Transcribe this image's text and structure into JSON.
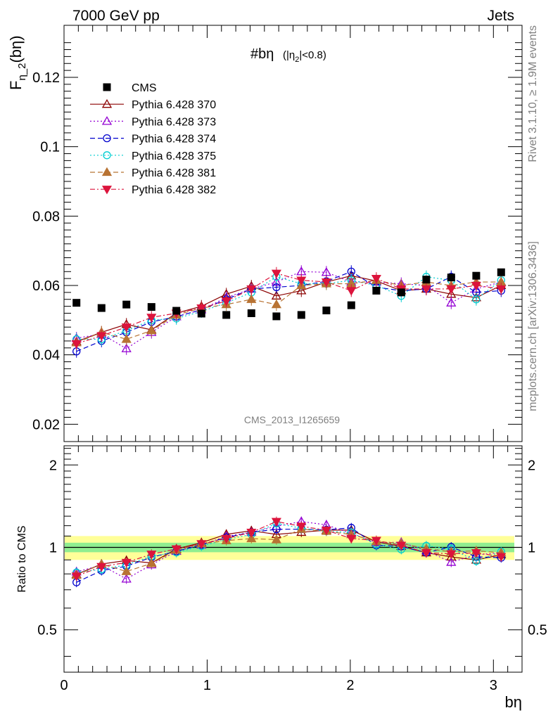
{
  "header": {
    "left": "7000 GeV pp",
    "right": "Jets"
  },
  "side_labels": {
    "rivet": "Rivet 3.1.10, ≥ 1.9M events",
    "mcplots": "mcplots.cern.ch [arXiv:1306.3436]"
  },
  "watermark": "CMS_2013_I1265659",
  "chart_data": [
    {
      "type": "scatter",
      "panel": "main",
      "title": "#bη",
      "title_cut": "(|η2|<0.8)",
      "ylabel": "Fη_2(bη)",
      "xlabel": "bη",
      "xlim": [
        0,
        3.2
      ],
      "ylim": [
        0.015,
        0.135
      ],
      "yticks": [
        0.02,
        0.04,
        0.06,
        0.08,
        0.1,
        0.12
      ],
      "ytick_labels": [
        "0.02",
        "0.04",
        "0.06",
        "0.08",
        "0.1",
        "0.12"
      ],
      "legend_position": "top-left",
      "x": [
        0.087,
        0.262,
        0.436,
        0.611,
        0.785,
        0.96,
        1.134,
        1.309,
        1.484,
        1.658,
        1.833,
        2.007,
        2.182,
        2.356,
        2.531,
        2.705,
        2.88,
        3.054
      ],
      "series": [
        {
          "name": "CMS",
          "color": "#000000",
          "marker": "square-filled",
          "line": "none",
          "values": [
            0.055,
            0.0535,
            0.0545,
            0.0538,
            0.0527,
            0.0519,
            0.0515,
            0.052,
            0.0511,
            0.0515,
            0.0528,
            0.0543,
            0.0585,
            0.058,
            0.0617,
            0.0623,
            0.0628,
            0.0638
          ]
        },
        {
          "name": "Pythia 6.428 370",
          "color": "#8b0000",
          "marker": "triangle-up-open",
          "line": "solid",
          "values": [
            0.0438,
            0.0465,
            0.0488,
            0.0472,
            0.052,
            0.054,
            0.0575,
            0.0598,
            0.057,
            0.0585,
            0.061,
            0.0628,
            0.0613,
            0.0585,
            0.059,
            0.0575,
            0.0565,
            0.06
          ]
        },
        {
          "name": "Pythia 6.428 373",
          "color": "#9400d3",
          "marker": "triangle-up-open",
          "line": "dotted",
          "values": [
            0.0448,
            0.046,
            0.0418,
            0.0465,
            0.051,
            0.053,
            0.0565,
            0.059,
            0.061,
            0.064,
            0.0638,
            0.061,
            0.061,
            0.0605,
            0.06,
            0.055,
            0.059,
            0.061
          ]
        },
        {
          "name": "Pythia 6.428 374",
          "color": "#0000cd",
          "marker": "circle-open",
          "line": "dashed",
          "values": [
            0.041,
            0.044,
            0.0465,
            0.0495,
            0.051,
            0.053,
            0.056,
            0.059,
            0.0595,
            0.06,
            0.0612,
            0.064,
            0.0595,
            0.0585,
            0.059,
            0.0625,
            0.058,
            0.0585
          ]
        },
        {
          "name": "Pythia 6.428 375",
          "color": "#00ced1",
          "marker": "circle-open",
          "line": "dotted",
          "values": [
            0.0445,
            0.0445,
            0.047,
            0.05,
            0.0505,
            0.0525,
            0.055,
            0.058,
            0.0625,
            0.0605,
            0.0605,
            0.0615,
            0.06,
            0.057,
            0.0625,
            0.0615,
            0.056,
            0.0615
          ]
        },
        {
          "name": "Pythia 6.428 381",
          "color": "#b87333",
          "marker": "triangle-up-filled",
          "line": "dashed",
          "values": [
            0.0435,
            0.0465,
            0.0445,
            0.047,
            0.0515,
            0.0535,
            0.0545,
            0.056,
            0.0545,
            0.06,
            0.0605,
            0.0605,
            0.0615,
            0.06,
            0.061,
            0.06,
            0.061,
            0.061
          ]
        },
        {
          "name": "Pythia 6.428 382",
          "color": "#dc143c",
          "marker": "triangle-down-filled",
          "line": "dashdot",
          "values": [
            0.0432,
            0.0455,
            0.048,
            0.0508,
            0.052,
            0.0535,
            0.0555,
            0.059,
            0.0635,
            0.0615,
            0.061,
            0.0585,
            0.062,
            0.059,
            0.059,
            0.059,
            0.06,
            0.059
          ]
        }
      ]
    },
    {
      "type": "scatter",
      "panel": "ratio",
      "ylabel": "Ratio to CMS",
      "xlabel": "bη",
      "xlim": [
        0,
        3.2
      ],
      "ylim": [
        0.35,
        2.35
      ],
      "yticks": [
        0.5,
        1,
        2
      ],
      "ytick_labels": [
        "0.5",
        "1",
        "2"
      ],
      "xticks": [
        0,
        1,
        2,
        3
      ],
      "xtick_labels": [
        "0",
        "1",
        "2",
        "3"
      ],
      "reference_line": 1,
      "band_inner": 0.04,
      "band_outer": 0.1,
      "band_colors": {
        "inner": "#90ee90",
        "outer": "#ffff99"
      }
    }
  ]
}
